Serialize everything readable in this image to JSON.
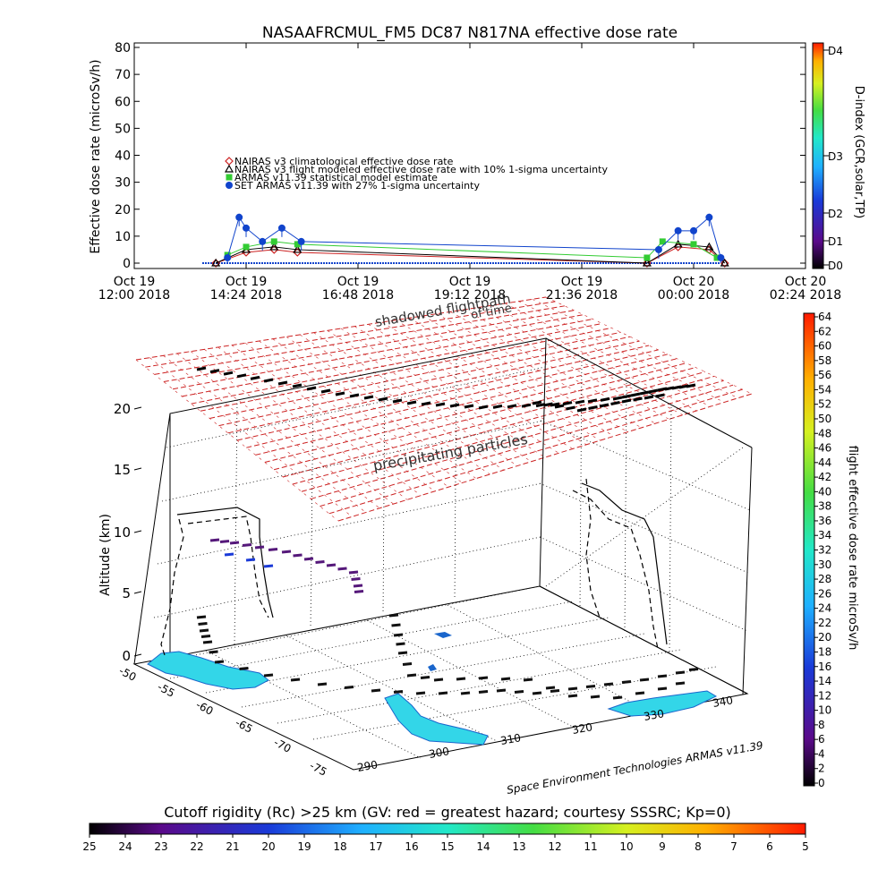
{
  "top_panel": {
    "title": "NASAAFRCMUL_FM5 DC87 N817NA effective dose rate",
    "ylabel": "Effective dose rate (microSv/h)",
    "yticks": [
      "0",
      "10",
      "20",
      "30",
      "40",
      "50",
      "60",
      "70",
      "80"
    ],
    "xticks": [
      {
        "l1": "Oct 19",
        "l2": "12:00 2018"
      },
      {
        "l1": "Oct 19",
        "l2": "14:24 2018"
      },
      {
        "l1": "Oct 19",
        "l2": "16:48 2018"
      },
      {
        "l1": "Oct 19",
        "l2": "19:12 2018"
      },
      {
        "l1": "Oct 19",
        "l2": "21:36 2018"
      },
      {
        "l1": "Oct 20",
        "l2": "00:00 2018"
      },
      {
        "l1": "Oct 20",
        "l2": "02:24 2018"
      }
    ],
    "legend": [
      {
        "text": "NAIRAS v3 climatological effective dose rate",
        "symbol": "diamond",
        "color": "#cc2222"
      },
      {
        "text": "NAIRAS v3 flight modeled effective dose rate with 10% 1-sigma uncertainty",
        "symbol": "triangle",
        "color": "#000000"
      },
      {
        "text": "ARMAS v11.39 statistical model estimate",
        "symbol": "star",
        "color": "#33cc33"
      },
      {
        "text": "SET ARMAS v11.39 with 27% 1-sigma uncertainty",
        "symbol": "circle",
        "color": "#1144cc"
      }
    ],
    "dindex_label": "D-index (GCR,solar,TP)",
    "dindex_ticks": [
      "D0",
      "D1",
      "D2",
      "D3",
      "D4"
    ]
  },
  "chart_data": [
    {
      "type": "scatter",
      "title": "NASAAFRCMUL_FM5 DC87 N817NA effective dose rate",
      "xlabel": "",
      "ylabel": "Effective dose rate (microSv/h)",
      "ylim": [
        0,
        80
      ],
      "xlim": [
        "2018-10-19 12:00",
        "2018-10-20 02:24"
      ],
      "series": [
        {
          "name": "NAIRAS v3 climatological effective dose rate",
          "x": [
            "2018-10-19 13:45",
            "2018-10-19 14:24",
            "2018-10-19 15:00",
            "2018-10-19 15:30",
            "2018-10-19 23:00",
            "2018-10-19 23:40",
            "2018-10-20 00:20",
            "2018-10-20 00:40"
          ],
          "y": [
            0,
            4,
            5,
            4,
            0,
            6,
            5,
            0
          ]
        },
        {
          "name": "NAIRAS v3 flight modeled effective dose rate with 10% 1-sigma uncertainty",
          "x": [
            "2018-10-19 13:45",
            "2018-10-19 14:24",
            "2018-10-19 15:00",
            "2018-10-19 15:30",
            "2018-10-19 23:00",
            "2018-10-19 23:40",
            "2018-10-20 00:20",
            "2018-10-20 00:40"
          ],
          "y": [
            0,
            5,
            6,
            5,
            0,
            7,
            6,
            0
          ]
        },
        {
          "name": "ARMAS v11.39 statistical model estimate",
          "x": [
            "2018-10-19 14:00",
            "2018-10-19 14:24",
            "2018-10-19 15:00",
            "2018-10-19 15:30",
            "2018-10-19 23:00",
            "2018-10-19 23:20",
            "2018-10-20 00:00",
            "2018-10-20 00:30"
          ],
          "y": [
            3,
            6,
            8,
            7,
            2,
            8,
            7,
            2
          ]
        },
        {
          "name": "SET ARMAS v11.39 with 27% 1-sigma uncertainty",
          "x": [
            "2018-10-19 14:00",
            "2018-10-19 14:15",
            "2018-10-19 14:24",
            "2018-10-19 14:45",
            "2018-10-19 15:10",
            "2018-10-19 15:35",
            "2018-10-19 23:15",
            "2018-10-19 23:40",
            "2018-10-20 00:00",
            "2018-10-20 00:20",
            "2018-10-20 00:35"
          ],
          "y": [
            2,
            17,
            13,
            8,
            13,
            8,
            5,
            12,
            12,
            17,
            2
          ]
        }
      ]
    },
    {
      "type": "scatter",
      "title": "",
      "xlabel": "",
      "ylabel": "Altitude (km)",
      "zlim": [
        0,
        20
      ],
      "z_ticks": [
        "0",
        "5",
        "10",
        "15",
        "20"
      ],
      "lat_ticks": [
        "-50",
        "-55",
        "-60",
        "-65",
        "-70",
        "-75"
      ],
      "lon_ticks": [
        "290",
        "300",
        "310",
        "320",
        "330",
        "340"
      ],
      "annotations": [
        "shadowed flightpath",
        "of time",
        "precipitating particles"
      ]
    }
  ],
  "lower_panel": {
    "ylabel": "Altitude (km)",
    "annotations": [
      "shadowed flightpath",
      "of time",
      "precipitating particles"
    ],
    "credit": "Space Environment Technologies ARMAS v11.39",
    "z_ticks": [
      "0",
      "5",
      "10",
      "15",
      "20"
    ],
    "lat_ticks": [
      "-50",
      "-55",
      "-60",
      "-65",
      "-70",
      "-75"
    ],
    "lon_ticks": [
      "290",
      "300",
      "310",
      "320",
      "330",
      "340"
    ]
  },
  "right_colorbar": {
    "label": "flight effective dose rate microSv/h",
    "ticks": [
      "0",
      "2",
      "4",
      "6",
      "8",
      "10",
      "12",
      "14",
      "16",
      "18",
      "20",
      "22",
      "24",
      "26",
      "28",
      "30",
      "32",
      "34",
      "36",
      "38",
      "40",
      "42",
      "44",
      "46",
      "48",
      "50",
      "52",
      "54",
      "56",
      "58",
      "60",
      "62",
      "64"
    ]
  },
  "bottom_colorbar": {
    "title": "Cutoff rigidity (Rc) >25 km (GV: red = greatest hazard; courtesy SSSRC; Kp=0)",
    "ticks": [
      "25",
      "24",
      "23",
      "22",
      "21",
      "20",
      "19",
      "18",
      "17",
      "16",
      "15",
      "14",
      "13",
      "12",
      "11",
      "10",
      "9",
      "8",
      "7",
      "6",
      "5"
    ]
  },
  "colors": {
    "accent": "#cc2222",
    "frame": "#000000"
  }
}
